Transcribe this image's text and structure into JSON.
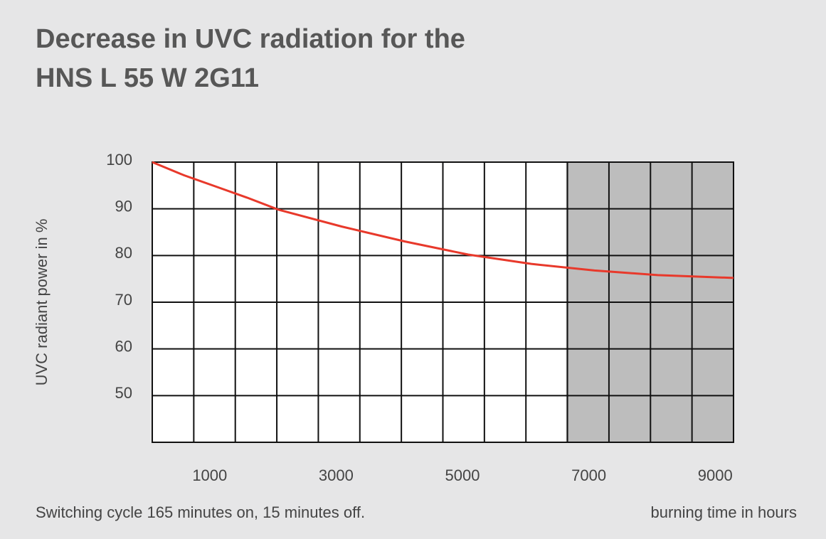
{
  "chart_data": {
    "type": "line",
    "title": [
      "Decrease in UVC radiation for the",
      "HNS L 55 W 2G11"
    ],
    "y_label": "UVC radiant power in %",
    "x_label": "burning time in hours",
    "note": "Switching cycle 165 minutes on, 15 minutes off.",
    "x": [
      0,
      500,
      1000,
      1500,
      2000,
      3000,
      4000,
      5000,
      6000,
      7000,
      8000,
      9000,
      9200
    ],
    "series": [
      {
        "name": "HNS L 55 W 2G11",
        "color": "#e8392b",
        "values": [
          100,
          97.2,
          94.8,
          92.4,
          89.8,
          86.2,
          83.0,
          80.2,
          78.2,
          76.8,
          75.8,
          75.3,
          75.2
        ]
      }
    ],
    "xlim": [
      0,
      9200
    ],
    "xticks": [
      1000,
      3000,
      5000,
      7000,
      9000
    ],
    "ylim": [
      40,
      100
    ],
    "yticks": [
      50,
      60,
      70,
      80,
      90,
      100
    ],
    "shaded_x": [
      6550,
      9200
    ],
    "shade_color": "#bdbdbd",
    "grid": true
  }
}
